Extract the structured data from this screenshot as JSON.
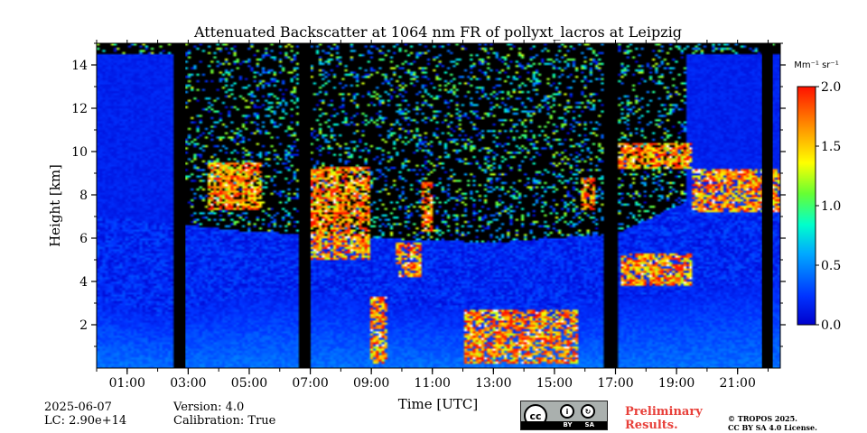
{
  "chart_data": {
    "type": "heatmap",
    "title": "Attenuated Backscatter at 1064 nm FR of pollyxt_lacros at Leipzig",
    "xlabel": "Time [UTC]",
    "ylabel": "Height [km]",
    "x_ticks": [
      "01:00",
      "03:00",
      "05:00",
      "07:00",
      "09:00",
      "11:00",
      "13:00",
      "15:00",
      "17:00",
      "19:00",
      "21:00"
    ],
    "x_range_hours": [
      0.0,
      22.4
    ],
    "y_ticks": [
      2,
      4,
      6,
      8,
      10,
      12,
      14
    ],
    "ylim": [
      0,
      15
    ],
    "colorbar": {
      "unit_label": "Mm⁻¹ sr⁻¹",
      "ticks": [
        "0.0",
        "0.5",
        "1.0",
        "1.5",
        "2.0"
      ],
      "range": [
        0.0,
        2.0
      ],
      "colormap": "jet"
    },
    "data_gaps_hours": [
      [
        2.55,
        2.9
      ],
      [
        6.65,
        7.0
      ],
      [
        16.65,
        17.05
      ],
      [
        21.8,
        22.15
      ]
    ],
    "features": {
      "boundary_layer_top_km": [
        [
          0.0,
          3.1
        ],
        [
          1.0,
          2.9
        ],
        [
          2.0,
          2.4
        ],
        [
          3.0,
          2.8
        ],
        [
          5.0,
          3.4
        ],
        [
          7.0,
          3.6
        ],
        [
          9.0,
          3.0
        ],
        [
          11.0,
          2.8
        ],
        [
          13.0,
          2.5
        ],
        [
          15.0,
          2.6
        ],
        [
          17.0,
          3.2
        ],
        [
          19.0,
          3.5
        ],
        [
          21.0,
          3.8
        ],
        [
          22.4,
          4.0
        ]
      ],
      "aerosol_layer_km": [
        [
          0.0,
          7.0
        ],
        [
          3.0,
          6.6
        ],
        [
          5.0,
          6.3
        ],
        [
          7.0,
          6.2
        ],
        [
          9.0,
          6.0
        ],
        [
          13.0,
          5.8
        ],
        [
          17.0,
          6.2
        ],
        [
          19.0,
          7.5
        ],
        [
          21.0,
          8.6
        ],
        [
          22.4,
          8.2
        ]
      ],
      "clouds": [
        {
          "t_start": 3.6,
          "t_end": 5.4,
          "base_km": 7.3,
          "top_km": 9.5
        },
        {
          "t_start": 7.0,
          "t_end": 9.0,
          "base_km": 5.0,
          "top_km": 9.3
        },
        {
          "t_start": 9.8,
          "t_end": 10.6,
          "base_km": 4.2,
          "top_km": 5.8
        },
        {
          "t_start": 10.6,
          "t_end": 11.0,
          "base_km": 6.3,
          "top_km": 8.6
        },
        {
          "t_start": 9.0,
          "t_end": 9.5,
          "base_km": 0.2,
          "top_km": 3.3
        },
        {
          "t_start": 12.0,
          "t_end": 15.8,
          "base_km": 0.2,
          "top_km": 2.7
        },
        {
          "t_start": 15.9,
          "t_end": 16.3,
          "base_km": 7.3,
          "top_km": 8.8
        },
        {
          "t_start": 17.2,
          "t_end": 19.5,
          "base_km": 3.8,
          "top_km": 5.3
        },
        {
          "t_start": 17.1,
          "t_end": 19.5,
          "base_km": 9.2,
          "top_km": 10.4
        },
        {
          "t_start": 19.5,
          "t_end": 22.4,
          "base_km": 7.2,
          "top_km": 9.2
        }
      ]
    }
  },
  "footer": {
    "date": "2025-06-07",
    "lc": "LC: 2.90e+14",
    "version": "Version: 4.0",
    "calibration": "Calibration: True",
    "preliminary_line1": "Preliminary",
    "preliminary_line2": "Results.",
    "copyright_line1": "© TROPOS 2025.",
    "copyright_line2": "CC BY SA 4.0 License.",
    "license_badge": {
      "cc": "cc",
      "by": "BY",
      "sa": "SA"
    }
  }
}
